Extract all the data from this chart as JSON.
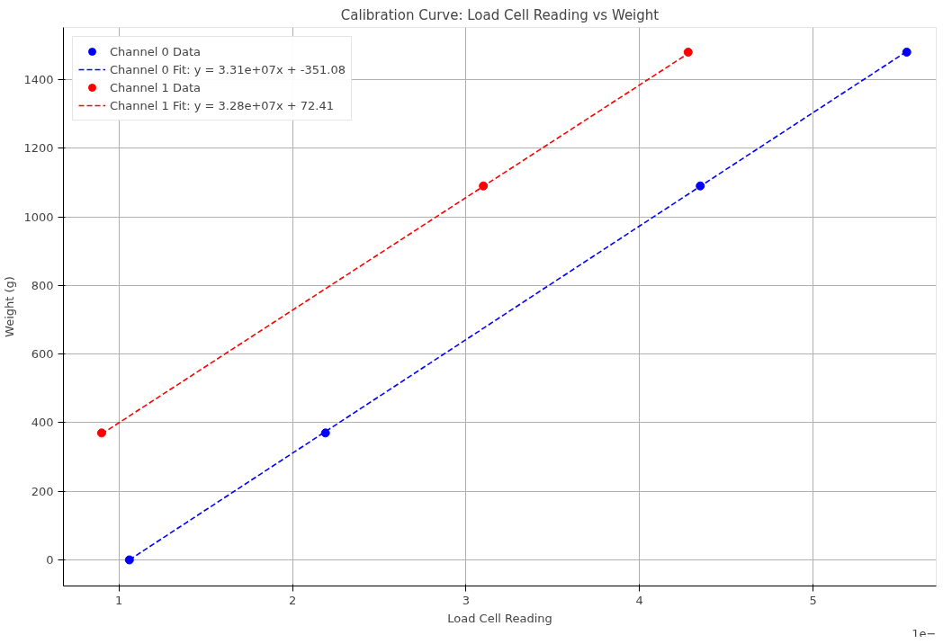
{
  "chart_data": {
    "type": "scatter",
    "title": "Calibration Curve: Load Cell Reading vs Weight",
    "xlabel": "Load Cell Reading",
    "ylabel": "Weight (g)",
    "annotations": [
      "1e−"
    ],
    "xlim": [
      0.68,
      5.71
    ],
    "xticks": [
      1,
      2,
      3,
      4,
      5
    ],
    "ylim": [
      -76,
      1552
    ],
    "yticks": [
      0,
      200,
      400,
      600,
      800,
      1000,
      1200,
      1400
    ],
    "grid": true,
    "legend": "top left",
    "series": [
      {
        "name": "Channel 0 Data",
        "marker": "circle",
        "color": "#0000ff",
        "x": [
          1.06,
          2.19,
          4.35,
          5.54
        ],
        "values": [
          0,
          370,
          1090,
          1480
        ]
      },
      {
        "name": "Channel 0 Fit: y = 3.31e+07x + -351.08",
        "type": "line",
        "line_style": "dashed",
        "color": "#0000ff",
        "x": [
          1.06,
          2.19,
          4.35,
          5.54
        ],
        "values": [
          0,
          374,
          1089,
          1482
        ]
      },
      {
        "name": "Channel 1 Data",
        "marker": "circle",
        "color": "#ff0000",
        "x": [
          0.9,
          3.1,
          4.28
        ],
        "values": [
          370,
          1090,
          1480
        ]
      },
      {
        "name": "Channel 1 Fit: y = 3.28e+07x + 72.41",
        "type": "line",
        "line_style": "dashed",
        "color": "#ff0000",
        "x": [
          0.9,
          3.1,
          4.28
        ],
        "values": [
          367,
          1089,
          1476
        ]
      }
    ]
  }
}
